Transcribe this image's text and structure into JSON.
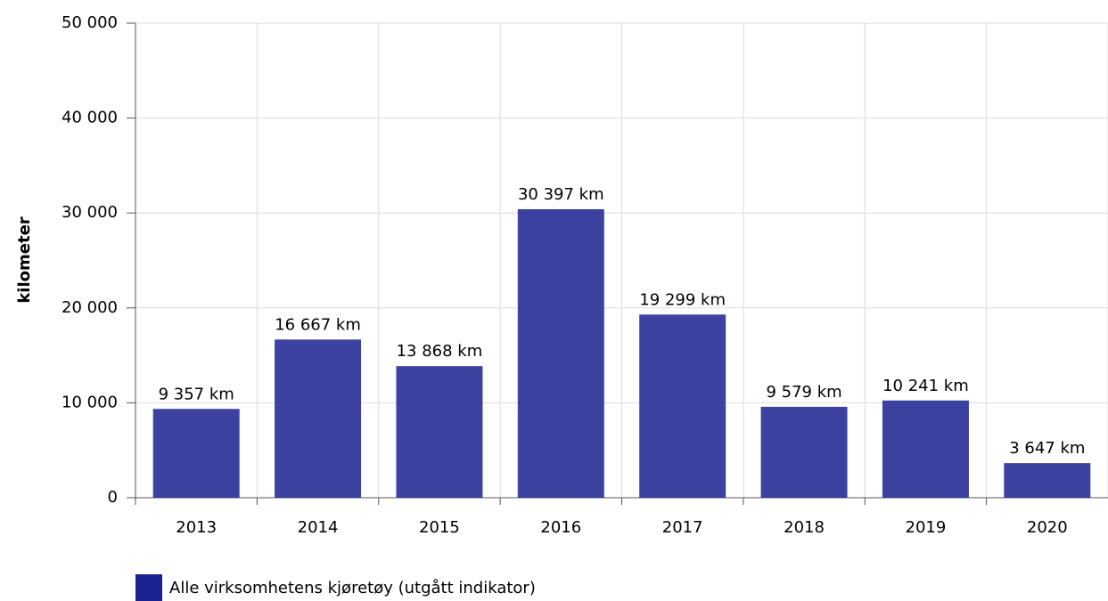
{
  "chart_data": {
    "type": "bar",
    "y_label": "kilometer",
    "categories": [
      "2013",
      "2014",
      "2015",
      "2016",
      "2017",
      "2018",
      "2019",
      "2020"
    ],
    "series": [
      {
        "name": "Alle virksomhetens kjøretøy (utgått indikator)",
        "color": "#1b2190",
        "values": [
          9357,
          16667,
          13868,
          30397,
          19299,
          9579,
          10241,
          3647
        ],
        "value_labels": [
          "9 357 km",
          "16 667 km",
          "13 868 km",
          "30 397 km",
          "19 299 km",
          "9 579 km",
          "10 241 km",
          "3 647 km"
        ]
      }
    ],
    "ylim": [
      0,
      50000
    ],
    "yticks": [
      0,
      {
        "value": 10000,
        "label": "10 000"
      },
      {
        "value": 20000,
        "label": "20 000"
      },
      {
        "value": 30000,
        "label": "30 000"
      },
      {
        "value": 40000,
        "label": "40 000"
      },
      {
        "value": 50000,
        "label": "50 000"
      }
    ],
    "grid": true,
    "legend": "bottom-left"
  }
}
